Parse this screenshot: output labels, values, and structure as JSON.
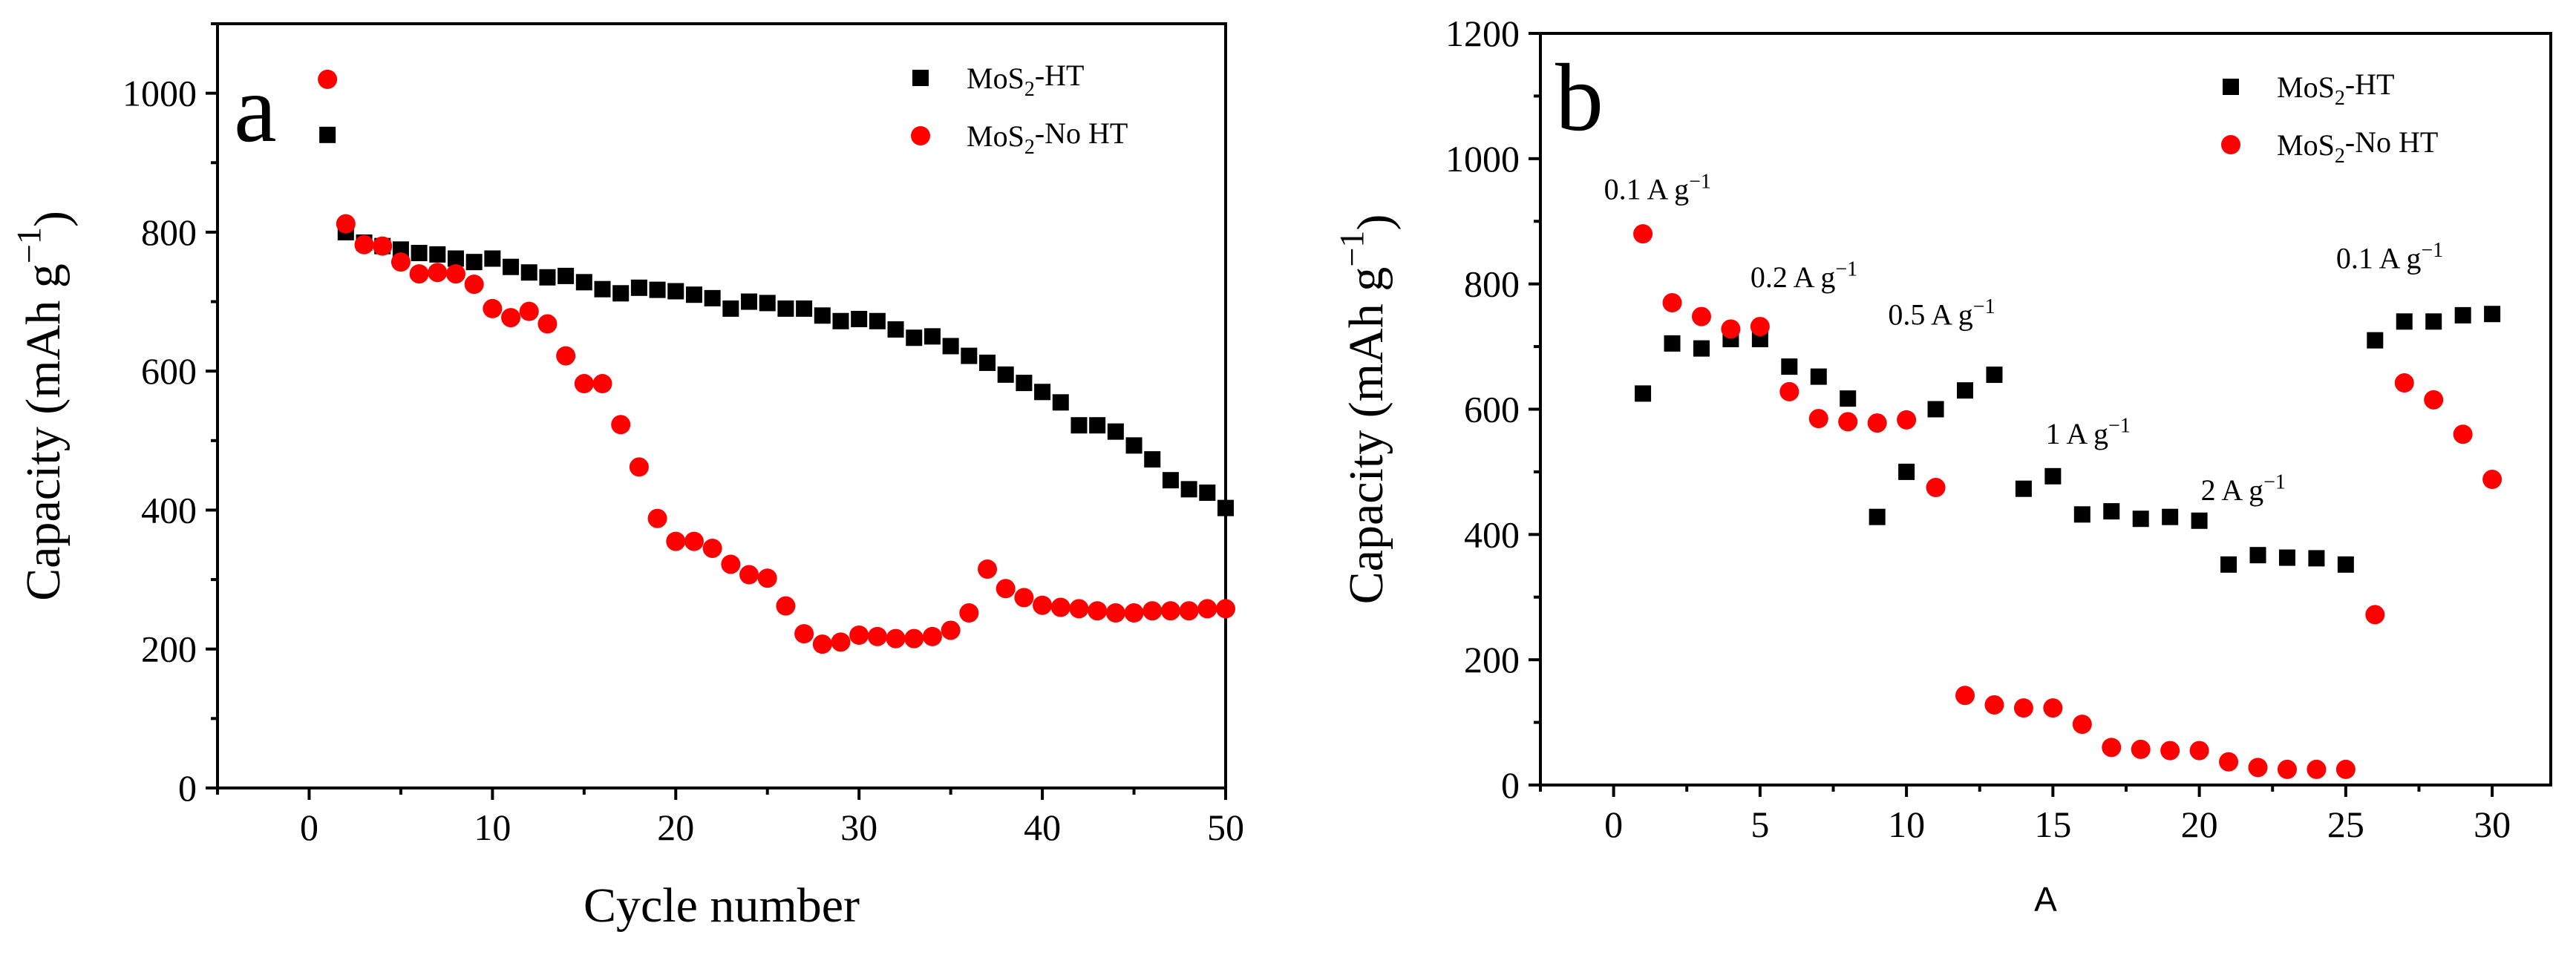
{
  "chart_data": [
    {
      "id": "a",
      "type": "scatter",
      "panel_label": "a",
      "xlabel": "Cycle number",
      "ylabel": "Capacity (mAh g⁻¹)",
      "xlim": [
        -5,
        50
      ],
      "ylim": [
        0,
        1100
      ],
      "xticks": [
        0,
        10,
        20,
        30,
        40,
        50
      ],
      "yticks": [
        0,
        200,
        400,
        600,
        800,
        1000
      ],
      "legend_position": "top-right",
      "series": [
        {
          "name": "MoS₂-HT",
          "marker": "square",
          "color": "#000000",
          "x": [
            1,
            2,
            3,
            4,
            5,
            6,
            7,
            8,
            9,
            10,
            11,
            12,
            13,
            14,
            15,
            16,
            17,
            18,
            19,
            20,
            21,
            22,
            23,
            24,
            25,
            26,
            27,
            28,
            29,
            30,
            31,
            32,
            33,
            34,
            35,
            36,
            37,
            38,
            39,
            40,
            41,
            42,
            43,
            44,
            45,
            46,
            47,
            48,
            49,
            50
          ],
          "values": [
            940,
            800,
            785,
            780,
            775,
            770,
            768,
            762,
            757,
            762,
            750,
            742,
            735,
            737,
            728,
            718,
            712,
            720,
            717,
            715,
            710,
            705,
            690,
            700,
            698,
            690,
            690,
            680,
            672,
            675,
            672,
            660,
            648,
            650,
            636,
            622,
            612,
            595,
            583,
            570,
            555,
            522,
            522,
            513,
            493,
            473,
            443,
            430,
            425,
            403
          ]
        },
        {
          "name": "MoS₂-No HT",
          "marker": "circle",
          "color": "#ff0000",
          "x": [
            1,
            2,
            3,
            4,
            5,
            6,
            7,
            8,
            9,
            10,
            11,
            12,
            13,
            14,
            15,
            16,
            17,
            18,
            19,
            20,
            21,
            22,
            23,
            24,
            25,
            26,
            27,
            28,
            29,
            30,
            31,
            32,
            33,
            34,
            35,
            36,
            37,
            38,
            39,
            40,
            41,
            42,
            43,
            44,
            45,
            46,
            47,
            48,
            49,
            50
          ],
          "values": [
            1020,
            812,
            782,
            780,
            757,
            740,
            742,
            740,
            725,
            690,
            677,
            686,
            668,
            622,
            582,
            582,
            523,
            462,
            388,
            355,
            355,
            345,
            322,
            307,
            302,
            262,
            222,
            207,
            210,
            220,
            218,
            215,
            215,
            218,
            227,
            252,
            315,
            287,
            274,
            263,
            260,
            258,
            255,
            252,
            252,
            255,
            255,
            255,
            258,
            258
          ]
        }
      ]
    },
    {
      "id": "b",
      "type": "scatter",
      "panel_label": "b",
      "xlabel": "A",
      "ylabel": "Capacity (mAh g⁻¹)",
      "xlim": [
        -2.5,
        32
      ],
      "ylim": [
        0,
        1200
      ],
      "xticks": [
        0,
        5,
        10,
        15,
        20,
        25,
        30
      ],
      "yticks": [
        0,
        200,
        400,
        600,
        800,
        1000,
        1200
      ],
      "legend_position": "top-right",
      "annotations": [
        {
          "text": "0.1 A g⁻¹",
          "x": 1.5,
          "y": 935
        },
        {
          "text": "0.2 A g⁻¹",
          "x": 6.5,
          "y": 795
        },
        {
          "text": "0.5 A g⁻¹",
          "x": 11.2,
          "y": 735
        },
        {
          "text": "1 A g⁻¹",
          "x": 16.2,
          "y": 545
        },
        {
          "text": "2 A g⁻¹",
          "x": 21.5,
          "y": 455
        },
        {
          "text": "0.1 A g⁻¹",
          "x": 26.5,
          "y": 825
        }
      ],
      "series": [
        {
          "name": "MoS₂-HT",
          "marker": "square",
          "color": "#000000",
          "x": [
            1,
            2,
            3,
            4,
            5,
            6,
            7,
            8,
            9,
            10,
            11,
            12,
            13,
            14,
            15,
            16,
            17,
            18,
            19,
            20,
            21,
            22,
            23,
            24,
            25,
            26,
            27,
            28,
            29,
            30
          ],
          "values": [
            625,
            705,
            697,
            712,
            712,
            668,
            652,
            617,
            428,
            500,
            600,
            630,
            655,
            473,
            493,
            432,
            437,
            425,
            428,
            422,
            352,
            367,
            363,
            362,
            352,
            710,
            740,
            740,
            750,
            752
          ]
        },
        {
          "name": "MoS₂-No HT",
          "marker": "circle",
          "color": "#ff0000",
          "x": [
            1,
            2,
            3,
            4,
            5,
            6,
            7,
            8,
            9,
            10,
            11,
            12,
            13,
            14,
            15,
            16,
            17,
            18,
            19,
            20,
            21,
            22,
            23,
            24,
            25,
            26,
            27,
            28,
            29,
            30
          ],
          "values": [
            880,
            770,
            748,
            728,
            732,
            628,
            585,
            580,
            578,
            583,
            475,
            143,
            128,
            123,
            123,
            97,
            60,
            57,
            55,
            55,
            37,
            28,
            25,
            25,
            25,
            272,
            642,
            615,
            560,
            488
          ]
        }
      ]
    }
  ]
}
